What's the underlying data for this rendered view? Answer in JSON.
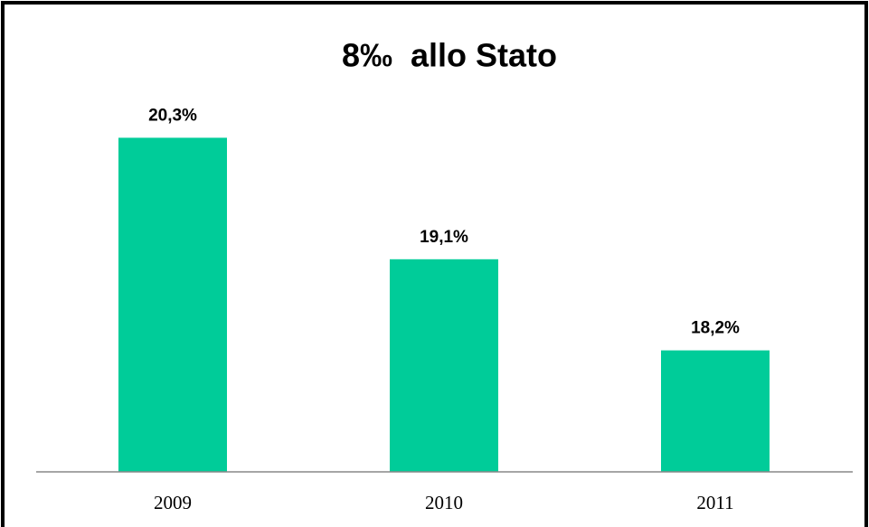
{
  "chart_data": {
    "type": "bar",
    "title": "8‰  allo Stato",
    "categories": [
      "2009",
      "2010",
      "2011"
    ],
    "values": [
      20.3,
      19.1,
      18.2
    ],
    "value_labels": [
      "20,3%",
      "19,1%",
      "18,2%"
    ],
    "color": "#00cc99",
    "ylim": [
      17,
      20.5
    ]
  }
}
